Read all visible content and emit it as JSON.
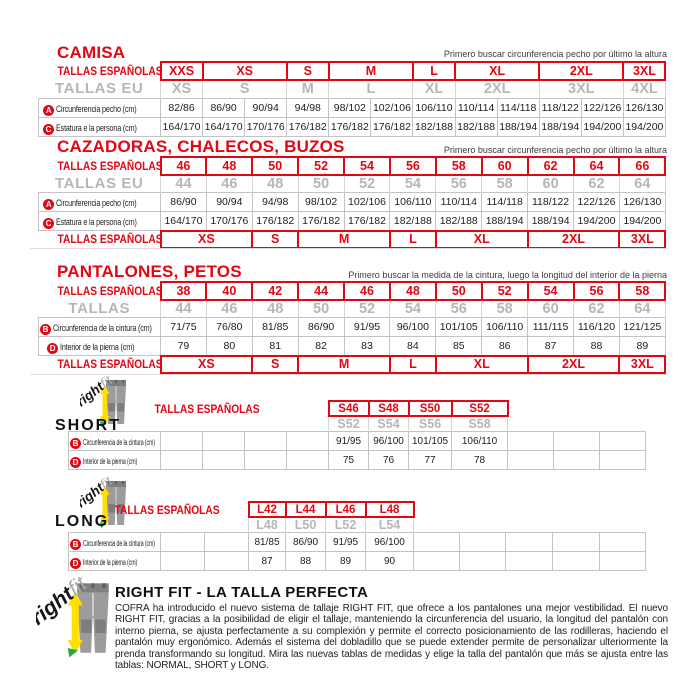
{
  "colors": {
    "red": "#e30613",
    "gray_text": "#b5b6b8",
    "border_gray": "#c4c4c4",
    "ink": "#1d1d1b",
    "arrow_yellow": "#ffdf00",
    "arrow_green": "#2fa43c"
  },
  "labels": {
    "tallas_espanolas": "TALLAS ESPAÑOLAS",
    "tallas_eu": "TALLAS EU",
    "tallas": "TALLAS",
    "chest": "Circunferencia pecho (cm)",
    "height": "Estatura e la persona (cm)",
    "waist": "Circunferencia de la cintura (cm)",
    "inseam": "Interior de la pierna (cm)"
  },
  "notes": {
    "chest_note": "Primero buscar circunferencia pecho por último la altura",
    "waist_note": "Primero buscar la medida de la cintura, luego la longitud del interior de la pierna"
  },
  "rightfit": {
    "word1": "right",
    "word2": "fit"
  },
  "sections": {
    "camisa": {
      "title": "CAMISA",
      "rows": [
        {
          "kind": "red",
          "label_key": "tallas_espanolas",
          "lead": 1,
          "trail": 0,
          "cells": [
            [
              "XXS",
              1
            ],
            [
              "XS",
              2
            ],
            [
              "S",
              1
            ],
            [
              "M",
              2
            ],
            [
              "L",
              1
            ],
            [
              "XL",
              2
            ],
            [
              "2XL",
              2
            ],
            [
              "3XL",
              1
            ]
          ]
        },
        {
          "kind": "gray",
          "label_key": "tallas_eu",
          "lead": 1,
          "trail": 0,
          "cells": [
            [
              "XS",
              1
            ],
            [
              "S",
              2
            ],
            [
              "M",
              1
            ],
            [
              "L",
              2
            ],
            [
              "XL",
              1
            ],
            [
              "2XL",
              2
            ],
            [
              "3XL",
              2
            ],
            [
              "4XL",
              1
            ]
          ]
        },
        {
          "kind": "data",
          "badge": "A",
          "label_key": "chest",
          "cells": [
            [
              "82/86",
              1
            ],
            [
              "86/90",
              1
            ],
            [
              "90/94",
              1
            ],
            [
              "94/98",
              1
            ],
            [
              "98/102",
              1
            ],
            [
              "102/106",
              1
            ],
            [
              "106/110",
              1
            ],
            [
              "110/114",
              1
            ],
            [
              "114/118",
              1
            ],
            [
              "118/122",
              1
            ],
            [
              "122/126",
              1
            ],
            [
              "126/130",
              1
            ]
          ]
        },
        {
          "kind": "data",
          "badge": "C",
          "label_key": "height",
          "cells": [
            [
              "164/170",
              1
            ],
            [
              "164/170",
              1
            ],
            [
              "170/176",
              1
            ],
            [
              "176/182",
              1
            ],
            [
              "176/182",
              1
            ],
            [
              "176/182",
              1
            ],
            [
              "182/188",
              1
            ],
            [
              "182/188",
              1
            ],
            [
              "188/194",
              1
            ],
            [
              "188/194",
              1
            ],
            [
              "194/200",
              1
            ],
            [
              "194/200",
              1
            ]
          ]
        }
      ]
    },
    "cazadoras": {
      "title": "CAZADORAS, CHALECOS, BUZOS",
      "rows": [
        {
          "kind": "red",
          "label_key": "tallas_espanolas",
          "lead": 1,
          "trail": 0,
          "cells": [
            [
              "46",
              1
            ],
            [
              "48",
              1
            ],
            [
              "50",
              1
            ],
            [
              "52",
              1
            ],
            [
              "54",
              1
            ],
            [
              "56",
              1
            ],
            [
              "58",
              1
            ],
            [
              "60",
              1
            ],
            [
              "62",
              1
            ],
            [
              "64",
              1
            ],
            [
              "66",
              1
            ]
          ]
        },
        {
          "kind": "gray",
          "label_key": "tallas_eu",
          "lead": 1,
          "trail": 0,
          "cells": [
            [
              "44",
              1
            ],
            [
              "46",
              1
            ],
            [
              "48",
              1
            ],
            [
              "50",
              1
            ],
            [
              "52",
              1
            ],
            [
              "54",
              1
            ],
            [
              "56",
              1
            ],
            [
              "58",
              1
            ],
            [
              "60",
              1
            ],
            [
              "62",
              1
            ],
            [
              "64",
              1
            ]
          ]
        },
        {
          "kind": "data",
          "badge": "A",
          "label_key": "chest",
          "cells": [
            [
              "86/90",
              1
            ],
            [
              "90/94",
              1
            ],
            [
              "94/98",
              1
            ],
            [
              "98/102",
              1
            ],
            [
              "102/106",
              1
            ],
            [
              "106/110",
              1
            ],
            [
              "110/114",
              1
            ],
            [
              "114/118",
              1
            ],
            [
              "118/122",
              1
            ],
            [
              "122/126",
              1
            ],
            [
              "126/130",
              1
            ]
          ]
        },
        {
          "kind": "data",
          "badge": "C",
          "label_key": "height",
          "cells": [
            [
              "164/170",
              1
            ],
            [
              "170/176",
              1
            ],
            [
              "176/182",
              1
            ],
            [
              "176/182",
              1
            ],
            [
              "176/182",
              1
            ],
            [
              "182/188",
              1
            ],
            [
              "182/188",
              1
            ],
            [
              "188/194",
              1
            ],
            [
              "188/194",
              1
            ],
            [
              "194/200",
              1
            ],
            [
              "194/200",
              1
            ]
          ]
        },
        {
          "kind": "red",
          "label_key": "tallas_espanolas",
          "lead": 1,
          "trail": 0,
          "cells": [
            [
              "XS",
              2
            ],
            [
              "S",
              1
            ],
            [
              "M",
              2
            ],
            [
              "L",
              1
            ],
            [
              "XL",
              2
            ],
            [
              "2XL",
              2
            ],
            [
              "3XL",
              1
            ]
          ]
        }
      ]
    },
    "pantalones": {
      "title": "PANTALONES, PETOS",
      "rows": [
        {
          "kind": "red",
          "label_key": "tallas_espanolas",
          "lead": 1,
          "trail": 0,
          "cells": [
            [
              "38",
              1
            ],
            [
              "40",
              1
            ],
            [
              "42",
              1
            ],
            [
              "44",
              1
            ],
            [
              "46",
              1
            ],
            [
              "48",
              1
            ],
            [
              "50",
              1
            ],
            [
              "52",
              1
            ],
            [
              "54",
              1
            ],
            [
              "56",
              1
            ],
            [
              "58",
              1
            ]
          ]
        },
        {
          "kind": "gray",
          "label_key": "tallas",
          "lead": 1,
          "trail": 0,
          "cells": [
            [
              "44",
              1
            ],
            [
              "46",
              1
            ],
            [
              "48",
              1
            ],
            [
              "50",
              1
            ],
            [
              "52",
              1
            ],
            [
              "54",
              1
            ],
            [
              "56",
              1
            ],
            [
              "58",
              1
            ],
            [
              "60",
              1
            ],
            [
              "62",
              1
            ],
            [
              "64",
              1
            ]
          ]
        },
        {
          "kind": "data",
          "badge": "B",
          "label_key": "waist",
          "cells": [
            [
              "71/75",
              1
            ],
            [
              "76/80",
              1
            ],
            [
              "81/85",
              1
            ],
            [
              "86/90",
              1
            ],
            [
              "91/95",
              1
            ],
            [
              "96/100",
              1
            ],
            [
              "101/105",
              1
            ],
            [
              "106/110",
              1
            ],
            [
              "111/115",
              1
            ],
            [
              "116/120",
              1
            ],
            [
              "121/125",
              1
            ]
          ]
        },
        {
          "kind": "data",
          "badge": "D",
          "label_key": "inseam",
          "cells": [
            [
              "79",
              1
            ],
            [
              "80",
              1
            ],
            [
              "81",
              1
            ],
            [
              "82",
              1
            ],
            [
              "83",
              1
            ],
            [
              "84",
              1
            ],
            [
              "85",
              1
            ],
            [
              "86",
              1
            ],
            [
              "87",
              1
            ],
            [
              "88",
              1
            ],
            [
              "89",
              1
            ]
          ]
        },
        {
          "kind": "red",
          "label_key": "tallas_espanolas",
          "lead": 1,
          "trail": 0,
          "cells": [
            [
              "XS",
              2
            ],
            [
              "S",
              1
            ],
            [
              "M",
              2
            ],
            [
              "L",
              1
            ],
            [
              "XL",
              2
            ],
            [
              "2XL",
              2
            ],
            [
              "3XL",
              1
            ]
          ]
        }
      ]
    },
    "short": {
      "title": "SHORT",
      "rows": [
        {
          "kind": "red",
          "label_key": "tallas_espanolas",
          "lead": 5,
          "trail": 3,
          "cells": [
            [
              "S46",
              1
            ],
            [
              "S48",
              1
            ],
            [
              "S50",
              1
            ],
            [
              "S52",
              1
            ]
          ]
        },
        {
          "kind": "gray",
          "label_key": null,
          "lead": 5,
          "trail": 3,
          "cells": [
            [
              "S52",
              1
            ],
            [
              "S54",
              1
            ],
            [
              "S56",
              1
            ],
            [
              "S58",
              1
            ]
          ]
        },
        {
          "kind": "data",
          "badge": "B",
          "label_key": "waist",
          "cells": [
            [
              "",
              1
            ],
            [
              "",
              1
            ],
            [
              "",
              1
            ],
            [
              "",
              1
            ],
            [
              "91/95",
              1
            ],
            [
              "96/100",
              1
            ],
            [
              "101/105",
              1
            ],
            [
              "106/110",
              1
            ],
            [
              "",
              1
            ],
            [
              "",
              1
            ],
            [
              "",
              1
            ]
          ]
        },
        {
          "kind": "data",
          "badge": "D",
          "label_key": "inseam",
          "cells": [
            [
              "",
              1
            ],
            [
              "",
              1
            ],
            [
              "",
              1
            ],
            [
              "",
              1
            ],
            [
              "75",
              1
            ],
            [
              "76",
              1
            ],
            [
              "77",
              1
            ],
            [
              "78",
              1
            ],
            [
              "",
              1
            ],
            [
              "",
              1
            ],
            [
              "",
              1
            ]
          ]
        }
      ]
    },
    "long": {
      "title": "LONG",
      "rows": [
        {
          "kind": "red",
          "label_key": "tallas_espanolas",
          "lead": 3,
          "trail": 5,
          "cells": [
            [
              "L42",
              1
            ],
            [
              "L44",
              1
            ],
            [
              "L46",
              1
            ],
            [
              "L48",
              1
            ]
          ]
        },
        {
          "kind": "gray",
          "label_key": null,
          "lead": 3,
          "trail": 5,
          "cells": [
            [
              "L48",
              1
            ],
            [
              "L50",
              1
            ],
            [
              "L52",
              1
            ],
            [
              "L54",
              1
            ]
          ]
        },
        {
          "kind": "data",
          "badge": "B",
          "label_key": "waist",
          "cells": [
            [
              "",
              1
            ],
            [
              "",
              1
            ],
            [
              "81/85",
              1
            ],
            [
              "86/90",
              1
            ],
            [
              "91/95",
              1
            ],
            [
              "96/100",
              1
            ],
            [
              "",
              1
            ],
            [
              "",
              1
            ],
            [
              "",
              1
            ],
            [
              "",
              1
            ],
            [
              "",
              1
            ]
          ]
        },
        {
          "kind": "data",
          "badge": "D",
          "label_key": "inseam",
          "cells": [
            [
              "",
              1
            ],
            [
              "",
              1
            ],
            [
              "87",
              1
            ],
            [
              "88",
              1
            ],
            [
              "89",
              1
            ],
            [
              "90",
              1
            ],
            [
              "",
              1
            ],
            [
              "",
              1
            ],
            [
              "",
              1
            ],
            [
              "",
              1
            ],
            [
              "",
              1
            ]
          ]
        }
      ]
    }
  },
  "footer": {
    "title": "RIGHT FIT - LA TALLA PERFECTA",
    "body": "COFRA ha introducido el nuevo sistema de tallaje RIGHT FIT, que ofrece a los pantalones una mejor vestibilidad. El nuevo RIGHT FIT, gracias a la posibilidad de eligir el tallaje, manteniendo la circunferencia del usuario, la longitud del pantalón con interno pierna, se ajusta perfectamente a su complexión y permite el correcto posicionamiento de las rodilleras, haciendo el pantalón muy ergonómico. Además el sistema del dobladillo que se puede extender permite de personalizar ulteriormente la prenda transformando su longitud. Mira las nuevas tablas de medidas y elige la talla del pantalón que más se ajusta entre las tablas: NORMAL, SHORT y LONG."
  }
}
